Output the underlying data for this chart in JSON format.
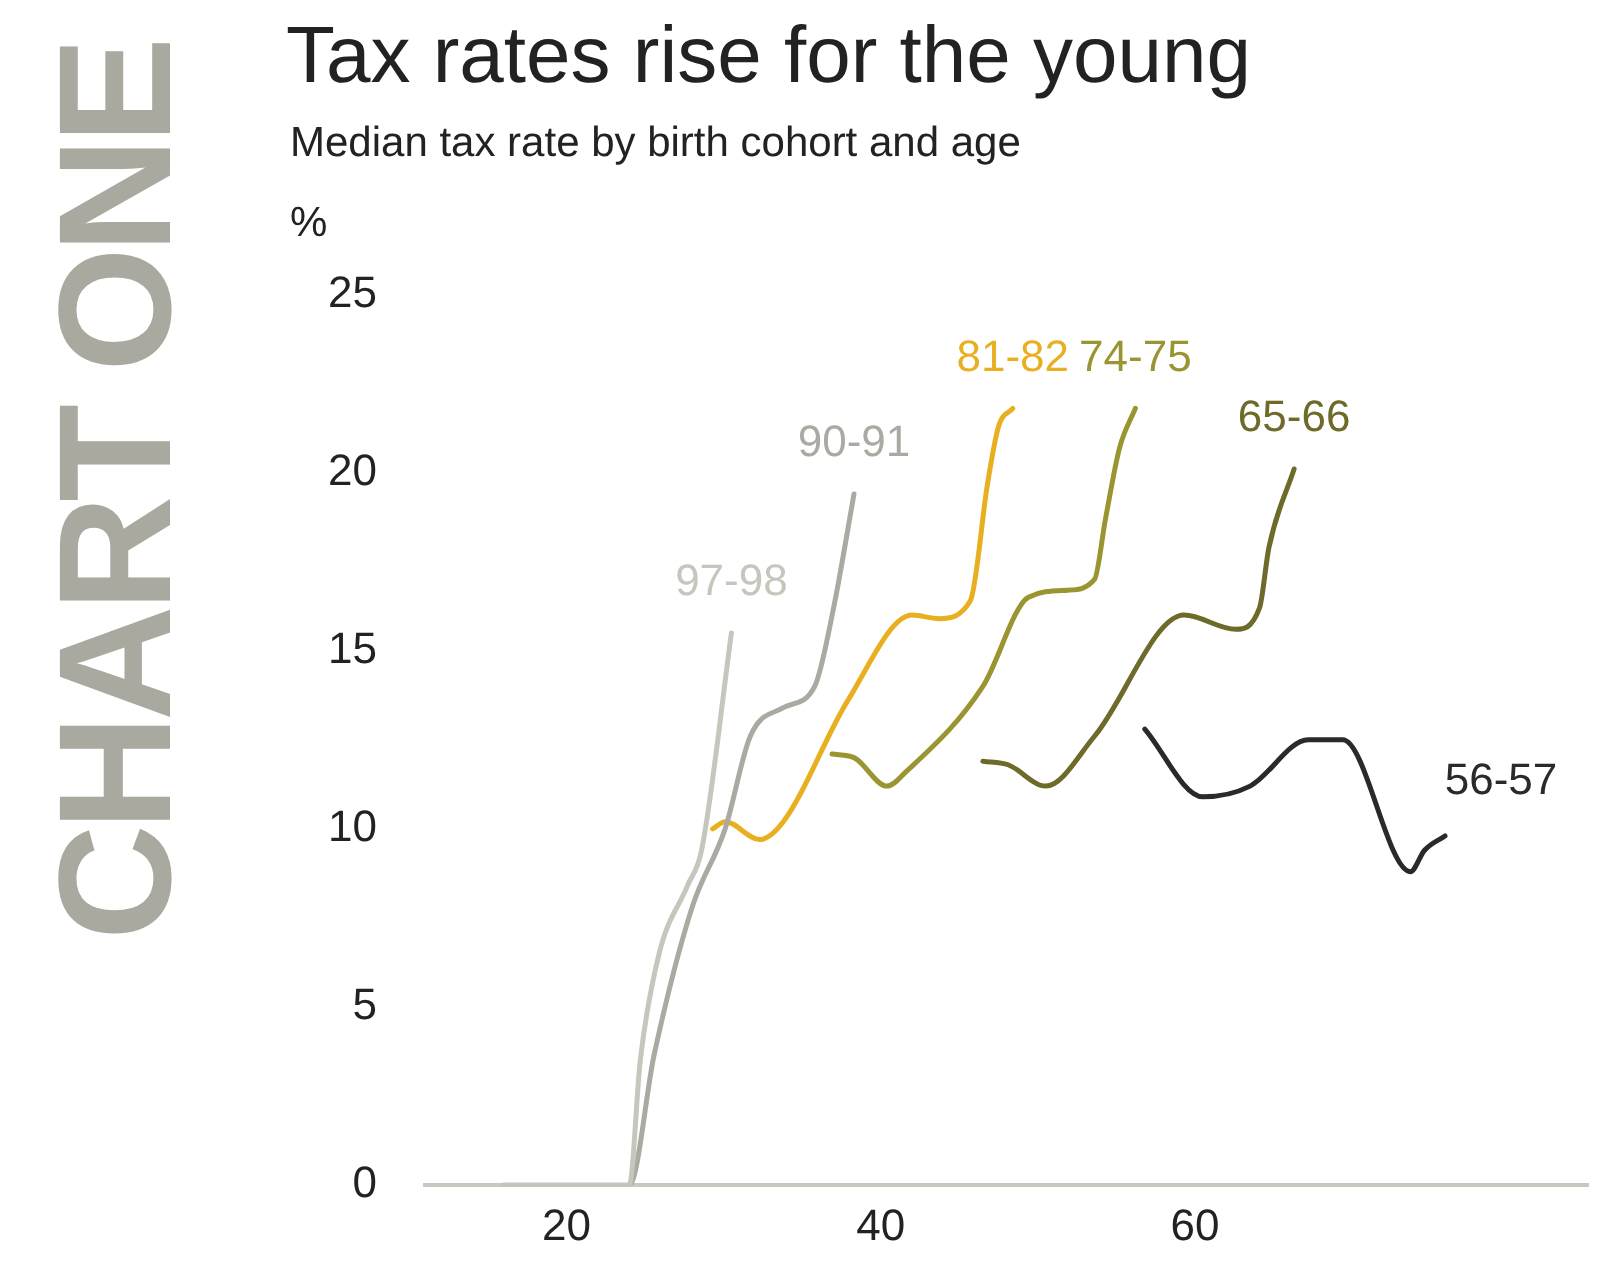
{
  "chart_data": {
    "type": "line",
    "title": "Tax rates rise for the young",
    "subtitle": "Median tax rate by birth cohort and age",
    "ylabel": "%",
    "annotations": [
      "CHART ONE"
    ],
    "series": [
      {
        "name": "97-98",
        "color": "#c6c6bd",
        "x": [
          16,
          23.1,
          24,
          24.7,
          25.9,
          27.7,
          28.6,
          30.5
        ],
        "values": [
          0,
          0,
          0,
          3.5,
          6.5,
          8.4,
          9.4,
          15.5
        ]
      },
      {
        "name": "90-91",
        "color": "#aaaaa2",
        "x": [
          16,
          23.1,
          24,
          25.6,
          28,
          30.1,
          31.7,
          33.8,
          35.8,
          37,
          38.3
        ],
        "values": [
          0,
          0,
          0,
          3.7,
          7.8,
          10,
          12.6,
          13.4,
          14,
          16.2,
          19.4
        ]
      },
      {
        "name": "81-82",
        "color": "#e8b020",
        "x": [
          29.3,
          30.1,
          32.3,
          33.8,
          37.9,
          42,
          43.7,
          45.7,
          46.8,
          47.5,
          48.4
        ],
        "values": [
          10,
          10.2,
          9.7,
          10.2,
          13.6,
          16,
          15.9,
          16.4,
          19.7,
          21.3,
          21.8
        ]
      },
      {
        "name": "74-75",
        "color": "#9a9530",
        "x": [
          36.9,
          38.3,
          40.4,
          41.6,
          46.5,
          49.4,
          51.9,
          53.6,
          54.3,
          55.2,
          56.2
        ],
        "values": [
          12.1,
          12,
          11.2,
          11.6,
          14,
          16.5,
          16.7,
          17,
          18.7,
          20.7,
          21.8
        ]
      },
      {
        "name": "65-66",
        "color": "#6e6a2a",
        "x": [
          46.5,
          48.1,
          50.5,
          53.6,
          59.3,
          62.6,
          64.1,
          64.7,
          66.3
        ],
        "values": [
          11.9,
          11.8,
          11.2,
          12.6,
          16,
          15.6,
          16.2,
          17.9,
          20.1
        ]
      },
      {
        "name": "56-57",
        "color": "#2a2a2a",
        "x": [
          56.8,
          60.5,
          63.5,
          67.2,
          69.4,
          73.7,
          74.6,
          75.9
        ],
        "values": [
          12.8,
          10.9,
          11.2,
          12.5,
          12.5,
          8.8,
          9.4,
          9.8
        ]
      }
    ],
    "xlim": [
      11,
      85
    ],
    "xticks": [
      20,
      40,
      60
    ],
    "ylim": [
      0,
      25
    ],
    "yticks": [
      0,
      5,
      10,
      15,
      20,
      25
    ],
    "grid": false,
    "legend": false,
    "marker": "none",
    "line_style": "solid"
  }
}
